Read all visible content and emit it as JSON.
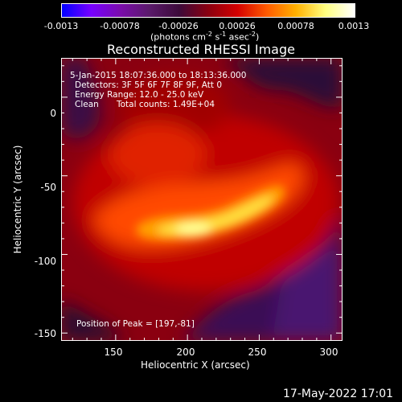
{
  "colorbar": {
    "ticks": [
      "-0.0013",
      "-0.00078",
      "-0.00026",
      "0.00026",
      "0.00078",
      "0.0013"
    ],
    "unit_prefix": "(photons cm",
    "unit_sup1": "-2",
    "unit_mid": " s",
    "unit_sup2": "-1",
    "unit_mid2": " asec",
    "unit_sup3": "-2",
    "unit_suffix": ")",
    "colors": [
      "#0000ff",
      "#7700ff",
      "#7a0cab",
      "#5a1a6a",
      "#3c0a3a",
      "#8a0010",
      "#d40000",
      "#ff5a00",
      "#ffb000",
      "#ffff80",
      "#ffffff"
    ]
  },
  "chart_data": {
    "type": "heatmap",
    "title": "Reconstructed RHESSI Image",
    "xlabel": "Heliocentric X (arcsec)",
    "ylabel": "Heliocentric Y (arcsec)",
    "xlim": [
      112,
      308
    ],
    "ylim": [
      -155,
      25
    ],
    "xticks": [
      "150",
      "200",
      "250",
      "300"
    ],
    "yticks": [
      "0",
      "-50",
      "-100",
      "-150"
    ],
    "clim": [
      -0.0013,
      0.0013
    ],
    "peak": [
      197,
      -81
    ],
    "annotations": {
      "time_range": "5-Jan-2015 18:07:36.000 to 18:13:36.000",
      "detectors": "Detectors: 3F 5F 6F 7F 8F 9F, Att 0",
      "energy": "Energy Range: 12.0 - 25.0 keV",
      "clean": "Clean",
      "total_counts": "Total counts: 1.49E+04",
      "peak_position": "Position of Peak = [197,-81]"
    }
  },
  "footer": {
    "timestamp": "17-May-2022 17:01"
  }
}
